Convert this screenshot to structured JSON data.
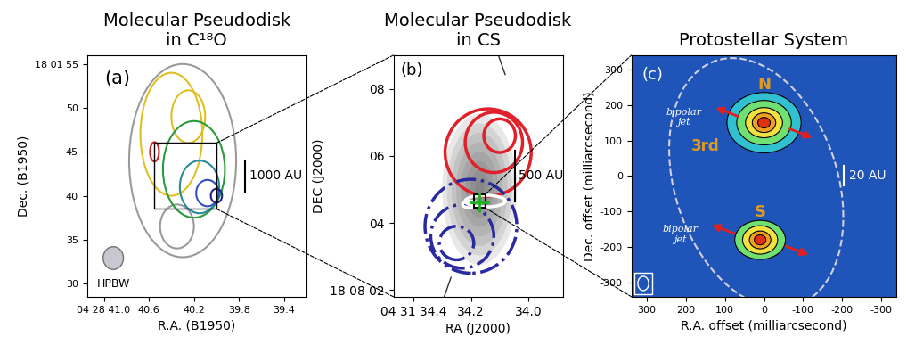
{
  "chart_data": [
    {
      "type": "contour",
      "label": "(a)",
      "title": "Molecular Pseudodisk\nin C¹⁸O",
      "x_label": "R.A. (B1950)",
      "y_label": "Dec. (B1950)",
      "xlim": [
        41.15,
        39.2
      ],
      "ylim": [
        28.5,
        56.0
      ],
      "xticks": [
        {
          "value": 41.0,
          "label": "04 28 41.0"
        },
        40.6,
        40.2,
        39.8,
        39.4
      ],
      "yticks": [
        30,
        35,
        40,
        45,
        50,
        {
          "value": 55,
          "label": "18 01 55"
        }
      ],
      "contours": [
        {
          "color": "#9a9a9a",
          "line_style": "solid",
          "ellipses": [
            [
              40.3,
              44.0,
              0.95,
              22.0
            ],
            [
              40.35,
              36.5,
              0.3,
              5.0
            ]
          ]
        },
        {
          "color": "#e0c020",
          "line_style": "solid",
          "ellipses": [
            [
              40.4,
              47.0,
              0.55,
              14.0
            ],
            [
              40.25,
              49.0,
              0.3,
              6.0
            ]
          ]
        },
        {
          "color": "#2a9a3a",
          "line_style": "solid",
          "ellipses": [
            [
              40.2,
              43.0,
              0.55,
              11.0
            ]
          ]
        },
        {
          "color": "#2a8a9a",
          "line_style": "solid",
          "ellipses": [
            [
              40.15,
              41.0,
              0.35,
              6.0
            ]
          ]
        },
        {
          "color": "#3050c0",
          "line_style": "solid",
          "ellipses": [
            [
              40.08,
              40.3,
              0.2,
              3.0
            ]
          ]
        },
        {
          "color": "#20208a",
          "line_style": "solid",
          "ellipses": [
            [
              40.0,
              40.0,
              0.1,
              1.6
            ]
          ]
        },
        {
          "color": "#d02020",
          "line_style": "solid",
          "ellipses": [
            [
              40.55,
              45.0,
              0.08,
              2.2
            ]
          ]
        }
      ],
      "zoom_box": {
        "x": [
          40.55,
          40.0
        ],
        "y": [
          38.5,
          46.0
        ]
      },
      "scale_bar": {
        "label": "1000 AU",
        "length": 3.5
      },
      "beam": {
        "label": "HPBW",
        "width": 0.18,
        "height": 2.6
      }
    },
    {
      "type": "contour",
      "label": "(b)",
      "title": "Molecular Pseudodisk\nin CS",
      "x_label": "RA (J2000)",
      "y_label": "DEC (J2000)",
      "xlim": [
        34.47,
        33.88
      ],
      "ylim": [
        1.8,
        9.0
      ],
      "xticks": [
        {
          "value": 34.4,
          "label": "04 31 34.4"
        },
        34.2,
        34.0
      ],
      "yticks": [
        {
          "value": 2,
          "label": "18 08 02"
        },
        {
          "value": 4,
          "label": "04"
        },
        {
          "value": 6,
          "label": "06"
        },
        {
          "value": 8,
          "label": "08"
        }
      ],
      "continuum": {
        "center": [
          34.17,
          5.0
        ],
        "width": 0.26,
        "height": 4.5
      },
      "contours": [
        {
          "color": "#e0202a",
          "line_style": "solid",
          "ellipses": [
            [
              34.14,
              6.1,
              0.3,
              2.6
            ],
            [
              34.12,
              6.4,
              0.2,
              1.8
            ],
            [
              34.1,
              6.6,
              0.11,
              1.0
            ]
          ]
        },
        {
          "color": "#2a2aa0",
          "line_style": "dashdot",
          "ellipses": [
            [
              34.2,
              3.9,
              0.32,
              2.8
            ],
            [
              34.23,
              3.6,
              0.22,
              1.9
            ],
            [
              34.25,
              3.4,
              0.12,
              1.0
            ]
          ]
        },
        {
          "color": "#ffffff",
          "line_style": "solid",
          "ellipses": [
            [
              34.15,
              4.65,
              0.14,
              0.35
            ],
            [
              34.2,
              4.55,
              0.06,
              0.2
            ]
          ]
        }
      ],
      "source_position": [
        34.17,
        4.6
      ],
      "zoom_box": {
        "x": [
          34.19,
          34.15
        ],
        "y": [
          4.45,
          4.85
        ]
      },
      "scale_bar": {
        "label": "500 AU",
        "length": 1.5
      }
    },
    {
      "type": "contour",
      "label": "(c)",
      "title": "Protostellar System",
      "x_label": "R.A. offset (milliarcsecond)",
      "y_label": "Dec. offset (milliarcsecond)",
      "xlim": [
        340,
        -340
      ],
      "ylim": [
        -340,
        340
      ],
      "xticks": [
        300,
        200,
        100,
        0,
        -100,
        -200,
        -300
      ],
      "yticks": [
        -300,
        -200,
        -100,
        0,
        100,
        200,
        300
      ],
      "sources": [
        {
          "label": "N",
          "center": [
            0,
            150
          ],
          "jet_label": "bipolar\njet",
          "sizes": [
            [
              190,
              170
            ],
            [
              140,
              125
            ],
            [
              95,
              85
            ],
            [
              60,
              55
            ],
            [
              32,
              30
            ]
          ]
        },
        {
          "label": "S",
          "center": [
            10,
            -180
          ],
          "jet_label": "bipolar\njet",
          "sizes": [
            [
              130,
              110
            ],
            [
              90,
              80
            ],
            [
              55,
              50
            ],
            [
              30,
              28
            ]
          ]
        }
      ],
      "third_source": {
        "label": "3rd",
        "position": [
          150,
          85
        ]
      },
      "scale_bar": {
        "label": "20 AU",
        "length": 55
      },
      "beam": {
        "width": 28,
        "height": 40
      }
    }
  ]
}
